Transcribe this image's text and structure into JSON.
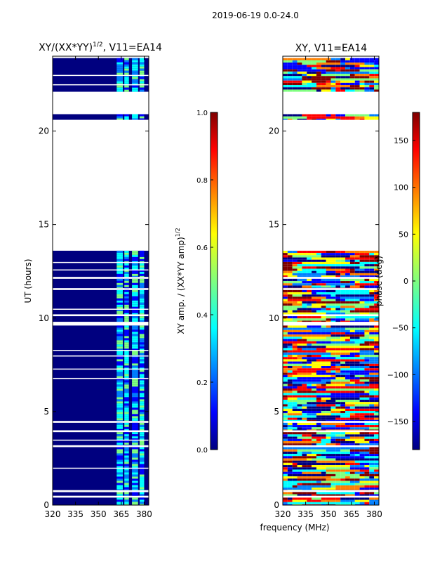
{
  "suptitle": "2019-06-19 0.0-24.0",
  "chart_data": [
    {
      "type": "heatmap",
      "title": "XY/(XX*YY)",
      "title_sup": "1/2",
      "title_suffix": ", V11=EA14",
      "xlabel": "",
      "ylabel": "UT (hours)",
      "xlim": [
        320,
        383
      ],
      "ylim": [
        0,
        24
      ],
      "xticks": [
        320,
        335,
        350,
        365,
        380
      ],
      "yticks": [
        0,
        5,
        10,
        15,
        20
      ],
      "colorbar": {
        "label": "XY amp. / (XX*YY amp)",
        "label_sup": "1/2",
        "range": [
          0.0,
          1.0
        ],
        "ticks": [
          "0.0",
          "0.2",
          "0.4",
          "0.6",
          "0.8",
          "1.0"
        ]
      },
      "data_blocks_hours": [
        [
          0.0,
          0.4
        ],
        [
          0.5,
          0.7
        ],
        [
          0.8,
          3.1
        ],
        [
          3.2,
          3.9
        ],
        [
          4.0,
          4.4
        ],
        [
          4.5,
          9.6
        ],
        [
          9.8,
          10.1
        ],
        [
          10.2,
          11.5
        ],
        [
          11.6,
          12.1
        ],
        [
          12.2,
          13.6
        ],
        [
          20.6,
          20.9
        ],
        [
          22.1,
          23.9
        ]
      ]
    },
    {
      "type": "heatmap",
      "title": "XY, V11=EA14",
      "xlabel": "frequency (MHz)",
      "ylabel": "",
      "xlim": [
        320,
        383
      ],
      "ylim": [
        0,
        24
      ],
      "xticks": [
        320,
        335,
        350,
        365,
        380
      ],
      "yticks": [
        0,
        5,
        10,
        15,
        20
      ],
      "colorbar": {
        "label": "phase (deg)",
        "range": [
          -180,
          180
        ],
        "ticks": [
          "150",
          "100",
          "50",
          "0",
          "−50",
          "−100",
          "−150"
        ]
      }
    }
  ],
  "palette": {
    "jet": [
      "#00007f",
      "#0000ff",
      "#007fff",
      "#00ffff",
      "#7fff7f",
      "#ffff00",
      "#ff7f00",
      "#ff0000",
      "#7f0000"
    ]
  }
}
